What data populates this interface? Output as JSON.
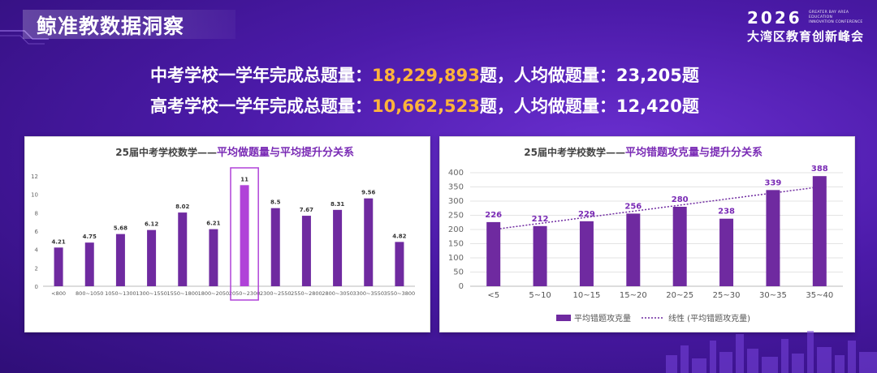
{
  "header": {
    "title": "鲸准教数据洞察",
    "brand_year": "2026",
    "brand_small_line1": "GREATER BAY AREA EDUCATION",
    "brand_small_line2": "INNOVATION CONFERENCE",
    "brand_name": "大湾区教育创新峰会"
  },
  "stats": [
    {
      "prefix": "中考学校一学年完成总题量：",
      "total": "18,229,893",
      "suffix": "题，人均做题量：23,205题"
    },
    {
      "prefix": "高考学校一学年完成总题量：",
      "total": "10,662,523",
      "suffix": "题，人均做题量：12,420题"
    }
  ],
  "colors": {
    "bar": "#6f2aa0",
    "highlight": "#b042d8",
    "accent_text": "#7a2bb5",
    "total_number": "#ffb43a"
  },
  "chart_data": [
    {
      "type": "bar",
      "title_black": "25届中考学校数学——",
      "title_purple": "平均做题量与平均提升分关系",
      "categories": [
        "<800",
        "800~1050",
        "1050~1300",
        "1300~1550",
        "1550~1800",
        "1800~2050",
        "2050~2300",
        "2300~2550",
        "2550~2800",
        "2800~3050",
        "3300~3550",
        "3550~3800"
      ],
      "values": [
        4.21,
        4.75,
        5.68,
        6.12,
        8.02,
        6.21,
        11,
        8.5,
        7.67,
        8.31,
        9.56,
        4.82
      ],
      "value_labels": [
        "4.21",
        "4.75",
        "5.68",
        "6.12",
        "8.02",
        "6.21",
        "11",
        "8.5",
        "7.67",
        "8.31",
        "9.56",
        "4.82"
      ],
      "highlight_index": 6,
      "ylim": [
        0,
        12
      ],
      "yticks": [
        "0",
        "2",
        "4",
        "6",
        "8",
        "10",
        "12"
      ]
    },
    {
      "type": "bar",
      "title_black": "25届中考学校数学——",
      "title_purple": "平均错题攻克量与提升分关系",
      "categories": [
        "<5",
        "5~10",
        "10~15",
        "15~20",
        "20~25",
        "25~30",
        "30~35",
        "35~40"
      ],
      "values": [
        226,
        212,
        229,
        256,
        280,
        238,
        339,
        388
      ],
      "value_labels": [
        "226",
        "212",
        "229",
        "256",
        "280",
        "238",
        "339",
        "388"
      ],
      "trendline": {
        "start": 200,
        "end": 350
      },
      "ylim": [
        0,
        400
      ],
      "yticks": [
        "0",
        "50",
        "100",
        "150",
        "200",
        "250",
        "300",
        "350",
        "400"
      ],
      "legend": [
        "平均错题攻克量",
        "线性 (平均错题攻克量)"
      ]
    }
  ]
}
